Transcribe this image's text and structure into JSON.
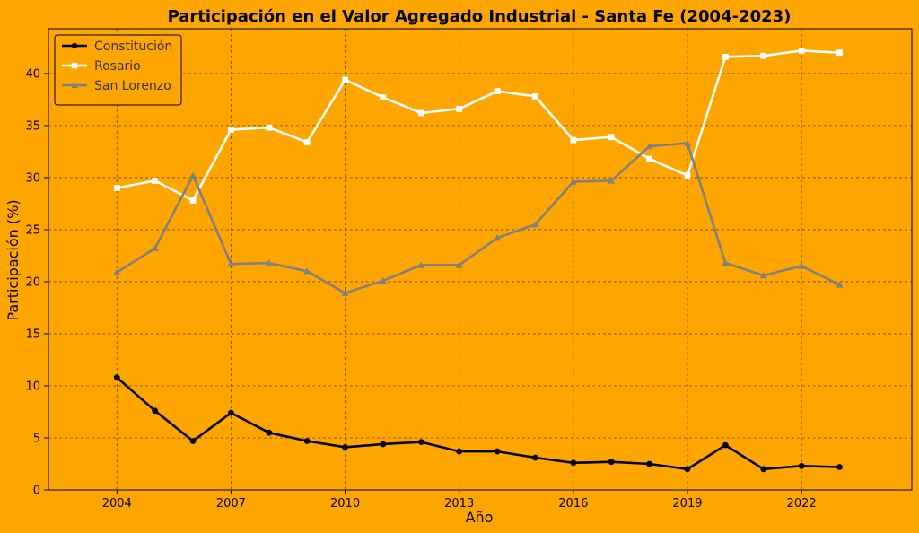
{
  "chart_data": {
    "type": "line",
    "title": "Participación en el Valor Agregado Industrial - Santa Fe (2004-2023)",
    "xlabel": "Año",
    "ylabel": "Participación (%)",
    "x": [
      2004,
      2005,
      2006,
      2007,
      2008,
      2009,
      2010,
      2011,
      2012,
      2013,
      2014,
      2015,
      2016,
      2017,
      2018,
      2019,
      2020,
      2021,
      2022,
      2023
    ],
    "xticks": [
      2004,
      2007,
      2010,
      2013,
      2016,
      2019,
      2022
    ],
    "yticks": [
      0,
      5,
      10,
      15,
      20,
      25,
      30,
      35,
      40
    ],
    "xlim": [
      2002.2,
      2024.9
    ],
    "ylim": [
      0,
      44.3
    ],
    "grid": true,
    "legend_position": "top-left",
    "background": "#FFA500",
    "series": [
      {
        "name": "Constitución",
        "color": "#000000",
        "marker": "circle",
        "values": [
          10.8,
          7.6,
          4.7,
          7.4,
          5.5,
          4.7,
          4.1,
          4.4,
          4.6,
          3.7,
          3.7,
          3.1,
          2.6,
          2.7,
          2.5,
          2.0,
          4.3,
          2.0,
          2.3,
          2.2
        ]
      },
      {
        "name": "Rosario",
        "color": "#FFFFFF",
        "marker": "square",
        "values": [
          29.0,
          29.7,
          27.8,
          34.6,
          34.8,
          33.4,
          39.4,
          37.7,
          36.2,
          36.6,
          38.3,
          37.8,
          33.6,
          33.9,
          31.8,
          30.2,
          41.6,
          41.7,
          42.2,
          42.0
        ]
      },
      {
        "name": "San Lorenzo",
        "color": "#808080",
        "marker": "triangle",
        "values": [
          20.9,
          23.2,
          30.2,
          21.7,
          21.8,
          21.0,
          18.9,
          20.1,
          21.6,
          21.6,
          24.2,
          25.5,
          29.6,
          29.7,
          33.0,
          33.3,
          21.8,
          20.6,
          21.5,
          19.7
        ]
      }
    ]
  }
}
